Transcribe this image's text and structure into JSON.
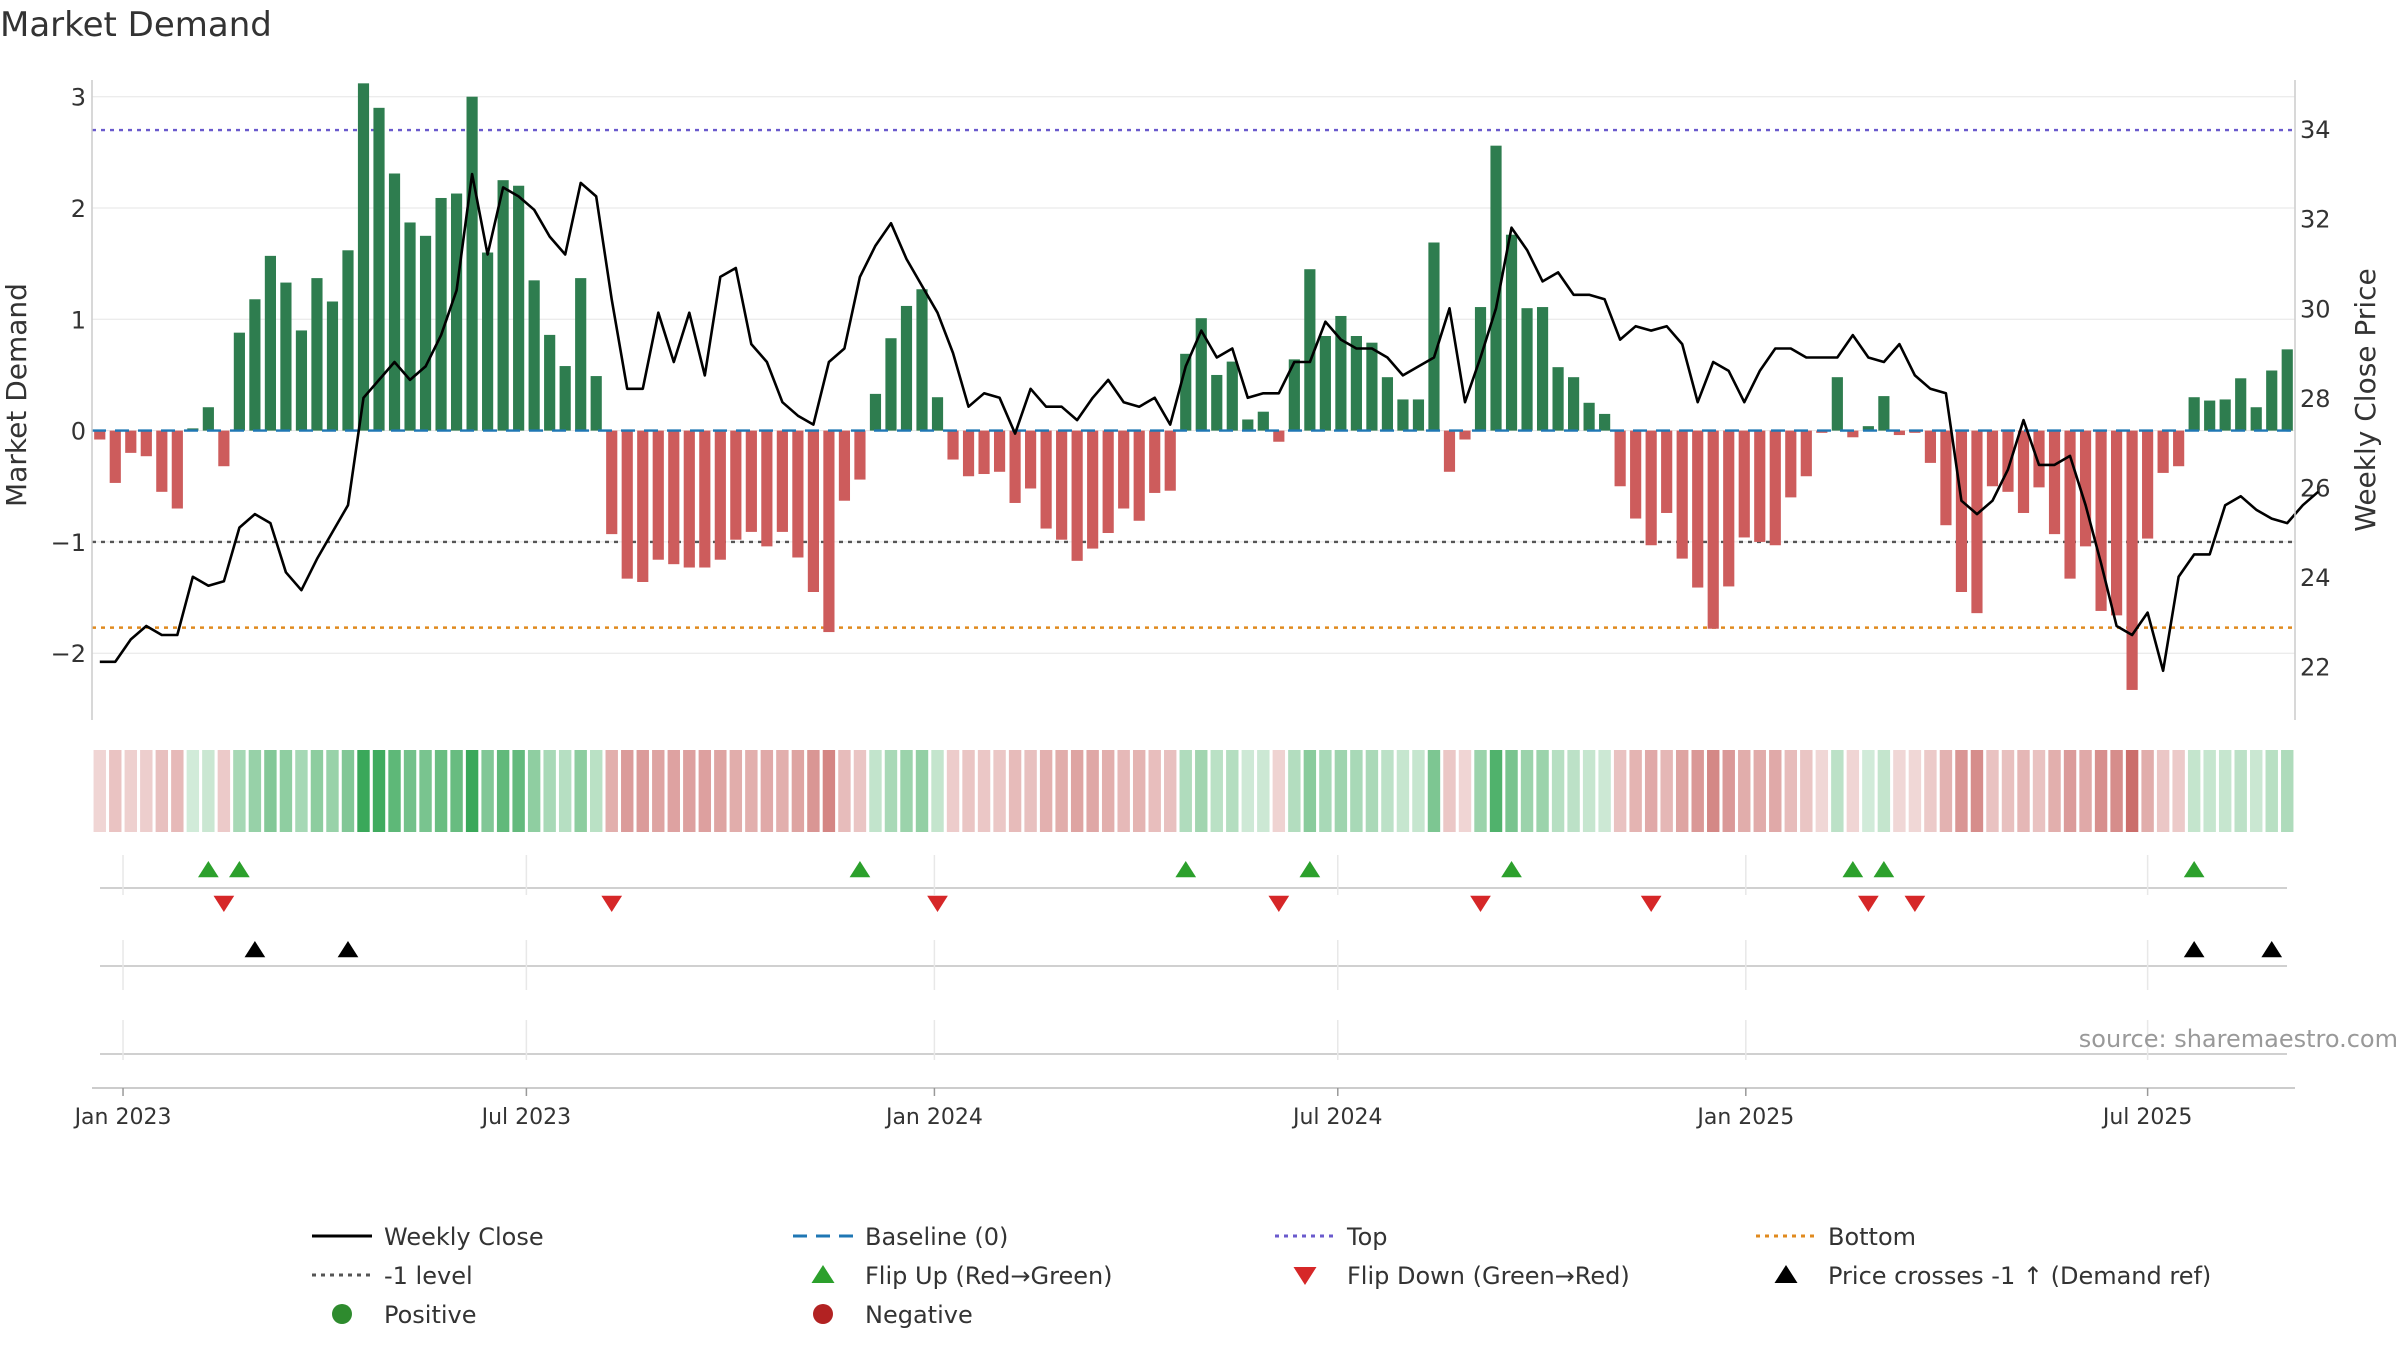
{
  "chart_data": {
    "type": "bar",
    "title": "Market Demand",
    "ylabel": "Market Demand",
    "y2label": "Weekly Close Price",
    "source": "source: sharemaestro.com",
    "ylim": [
      -2.6,
      3.15
    ],
    "y2lim": [
      20.8,
      35.1
    ],
    "yticks": [
      "3",
      "2",
      "1",
      "0",
      "−1",
      "−2"
    ],
    "ytick_values": [
      3,
      2,
      1,
      0,
      -1,
      -2
    ],
    "y2ticks": [
      "34",
      "32",
      "30",
      "28",
      "26",
      "24",
      "22"
    ],
    "y2tick_values": [
      34,
      32,
      30,
      28,
      26,
      24,
      22
    ],
    "x_start": "2022-12-22",
    "xtick_labels": [
      "Jan 2023",
      "Jul 2023",
      "Jan 2024",
      "Jul 2024",
      "Jan 2025",
      "Jul 2025"
    ],
    "xtick_weeks": [
      1.5,
      27.5,
      53.8,
      79.8,
      106.1,
      132
    ],
    "reference_lines": {
      "top": 2.7,
      "bottom": -1.77,
      "minus_one": -1,
      "baseline": 0
    },
    "series": [
      {
        "name": "Market Demand",
        "axis": "left",
        "values": [
          -0.08,
          -0.47,
          -0.2,
          -0.23,
          -0.55,
          -0.7,
          0.02,
          0.21,
          -0.32,
          0.88,
          1.18,
          1.57,
          1.33,
          0.9,
          1.37,
          1.16,
          1.62,
          3.12,
          2.9,
          2.31,
          1.87,
          1.75,
          2.09,
          2.13,
          3.0,
          1.6,
          2.25,
          2.2,
          1.35,
          0.86,
          0.58,
          1.37,
          0.49,
          -0.93,
          -1.33,
          -1.36,
          -1.16,
          -1.2,
          -1.23,
          -1.23,
          -1.16,
          -0.98,
          -0.91,
          -1.04,
          -0.91,
          -1.14,
          -1.45,
          -1.81,
          -0.63,
          -0.44,
          0.33,
          0.83,
          1.12,
          1.27,
          0.3,
          -0.26,
          -0.41,
          -0.39,
          -0.37,
          -0.65,
          -0.52,
          -0.88,
          -0.98,
          -1.17,
          -1.06,
          -0.92,
          -0.7,
          -0.81,
          -0.56,
          -0.54,
          0.69,
          1.01,
          0.5,
          0.62,
          0.1,
          0.17,
          -0.1,
          0.64,
          1.45,
          0.85,
          1.03,
          0.85,
          0.79,
          0.48,
          0.28,
          0.28,
          1.69,
          -0.37,
          -0.08,
          1.11,
          2.56,
          1.76,
          1.1,
          1.11,
          0.57,
          0.48,
          0.25,
          0.15,
          -0.5,
          -0.79,
          -1.03,
          -0.74,
          -1.15,
          -1.41,
          -1.78,
          -1.4,
          -0.96,
          -1.0,
          -1.03,
          -0.6,
          -0.41,
          -0.02,
          0.48,
          -0.06,
          0.04,
          0.31,
          -0.04,
          -0.02,
          -0.29,
          -0.85,
          -1.45,
          -1.64,
          -0.5,
          -0.55,
          -0.74,
          -0.51,
          -0.93,
          -1.33,
          -1.04,
          -1.62,
          -1.66,
          -2.33,
          -0.97,
          -0.38,
          -0.32,
          0.3,
          0.27,
          0.28,
          0.47,
          0.21,
          0.54,
          0.73
        ]
      },
      {
        "name": "Weekly Close",
        "axis": "right",
        "values": [
          22.1,
          22.1,
          22.6,
          22.9,
          22.7,
          22.7,
          24.0,
          23.8,
          23.9,
          25.1,
          25.4,
          25.2,
          24.1,
          23.7,
          24.4,
          25.0,
          25.6,
          28.0,
          28.4,
          28.8,
          28.4,
          28.7,
          29.4,
          30.4,
          33.0,
          31.2,
          32.7,
          32.5,
          32.2,
          31.6,
          31.2,
          32.8,
          32.5,
          30.2,
          28.2,
          28.2,
          29.9,
          28.8,
          29.9,
          28.5,
          30.7,
          30.9,
          29.2,
          28.8,
          27.9,
          27.6,
          27.4,
          28.8,
          29.1,
          30.7,
          31.4,
          31.9,
          31.1,
          30.5,
          29.9,
          29.0,
          27.8,
          28.1,
          28.0,
          27.2,
          28.2,
          27.8,
          27.8,
          27.5,
          28.0,
          28.4,
          27.9,
          27.8,
          28.0,
          27.4,
          28.7,
          29.5,
          28.9,
          29.1,
          28.0,
          28.1,
          28.1,
          28.8,
          28.8,
          29.7,
          29.3,
          29.1,
          29.1,
          28.9,
          28.5,
          28.7,
          28.9,
          30.0,
          27.9,
          28.9,
          30.0,
          31.8,
          31.3,
          30.6,
          30.8,
          30.3,
          30.3,
          30.2,
          29.3,
          29.6,
          29.5,
          29.6,
          29.2,
          27.9,
          28.8,
          28.6,
          27.9,
          28.6,
          29.1,
          29.1,
          28.9,
          28.9,
          28.9,
          29.4,
          28.9,
          28.8,
          29.2,
          28.5,
          28.2,
          28.1,
          25.7,
          25.4,
          25.7,
          26.4,
          27.5,
          26.5,
          26.5,
          26.7,
          25.6,
          24.3,
          22.9,
          22.7,
          23.2,
          21.9,
          24.0,
          24.5,
          24.5,
          25.6,
          25.8,
          25.5,
          25.3,
          25.2,
          25.6,
          25.9
        ]
      }
    ],
    "flip_up_weeks": [
      7,
      9,
      49,
      70,
      78,
      91,
      113,
      115,
      135
    ],
    "flip_down_weeks": [
      8,
      33,
      54,
      76,
      89,
      100,
      114,
      117
    ],
    "price_cross_weeks": [
      10,
      16,
      135,
      140
    ]
  },
  "legend": [
    {
      "label": "Weekly Close",
      "color": "#000000",
      "style": "line"
    },
    {
      "label": "Baseline (0)",
      "color": "#1f77b4",
      "style": "dash"
    },
    {
      "label": "Top",
      "color": "#6a5acd",
      "style": "dot"
    },
    {
      "label": "Bottom",
      "color": "#e08a1e",
      "style": "dot"
    },
    {
      "label": "-1 level",
      "color": "#555555",
      "style": "dot"
    },
    {
      "label": "Flip Up (Red→Green)",
      "color": "#2ca02c",
      "style": "tri-up"
    },
    {
      "label": "Flip Down (Green→Red)",
      "color": "#d62728",
      "style": "tri-down"
    },
    {
      "label": "Price crosses -1 ↑ (Demand ref)",
      "color": "#000000",
      "style": "tri-up"
    },
    {
      "label": "Positive",
      "color": "#2e8b2e",
      "style": "circle"
    },
    {
      "label": "Negative",
      "color": "#b22222",
      "style": "circle"
    }
  ],
  "colors": {
    "positive_bar": "#2e7d4f",
    "negative_bar": "#cd5c5c",
    "price_line": "#000000",
    "flip_up": "#2ca02c",
    "flip_down": "#d62728",
    "strip_positive": "#3aa85a",
    "strip_negative": "#c0504d"
  }
}
